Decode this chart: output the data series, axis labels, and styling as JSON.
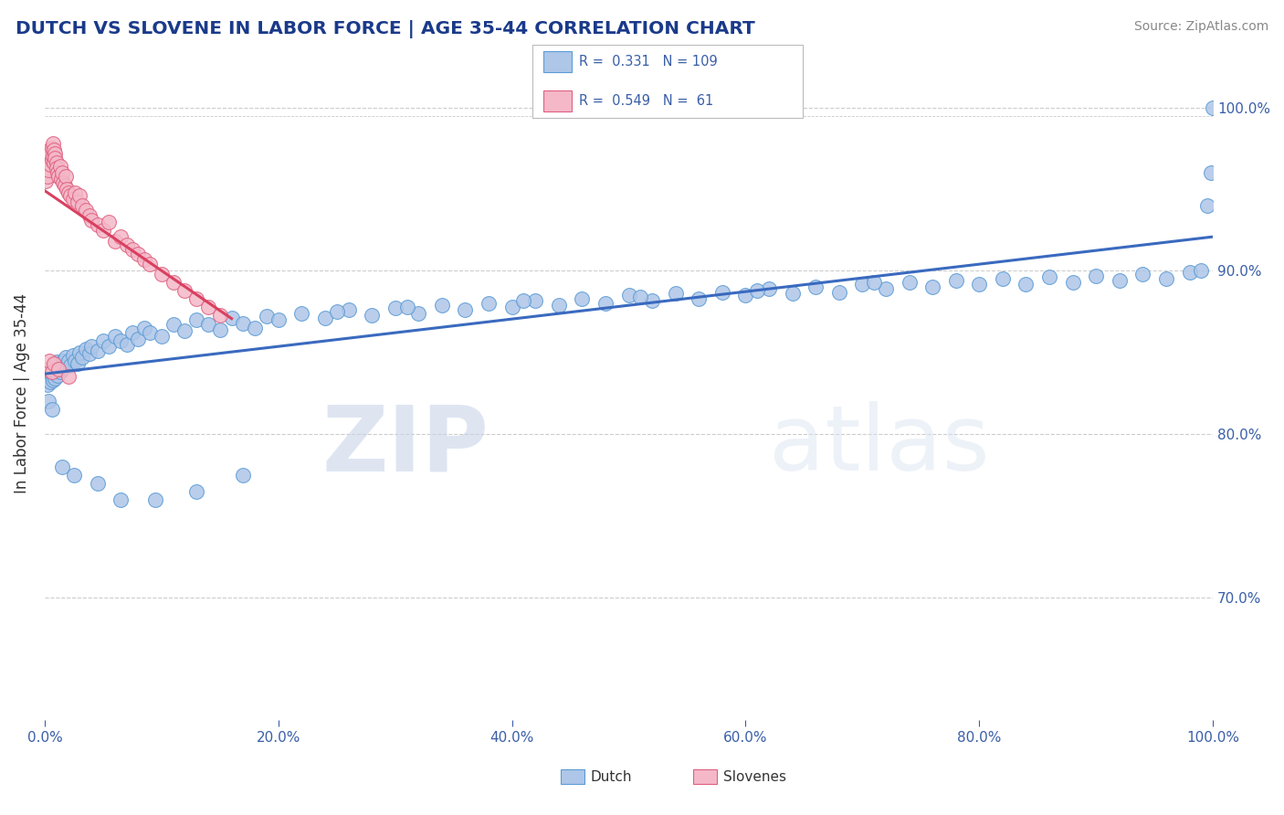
{
  "title": "DUTCH VS SLOVENE IN LABOR FORCE | AGE 35-44 CORRELATION CHART",
  "source_text": "Source: ZipAtlas.com",
  "ylabel": "In Labor Force | Age 35-44",
  "xlim": [
    0.0,
    1.0
  ],
  "ylim": [
    0.625,
    1.025
  ],
  "yticks": [
    0.7,
    0.8,
    0.9,
    1.0
  ],
  "xticks": [
    0.0,
    0.2,
    0.4,
    0.6,
    0.8,
    1.0
  ],
  "dutch_color": "#aec6e8",
  "slovene_color": "#f4b8c8",
  "dutch_edge_color": "#5b9bd5",
  "slovene_edge_color": "#e06080",
  "trend_dutch_color": "#3a6abf",
  "trend_slovene_color": "#d94060",
  "R_dutch": 0.331,
  "N_dutch": 109,
  "R_slovene": 0.549,
  "N_slovene": 61,
  "watermark_zip": "ZIP",
  "watermark_atlas": "atlas",
  "dutch_x": [
    0.002,
    0.003,
    0.004,
    0.005,
    0.005,
    0.006,
    0.007,
    0.007,
    0.008,
    0.009,
    0.01,
    0.01,
    0.011,
    0.012,
    0.013,
    0.014,
    0.015,
    0.016,
    0.017,
    0.018,
    0.02,
    0.022,
    0.024,
    0.026,
    0.028,
    0.03,
    0.032,
    0.035,
    0.038,
    0.04,
    0.045,
    0.05,
    0.055,
    0.06,
    0.065,
    0.07,
    0.075,
    0.08,
    0.085,
    0.09,
    0.1,
    0.11,
    0.12,
    0.13,
    0.14,
    0.15,
    0.16,
    0.17,
    0.18,
    0.19,
    0.2,
    0.22,
    0.24,
    0.26,
    0.28,
    0.3,
    0.32,
    0.34,
    0.36,
    0.38,
    0.4,
    0.42,
    0.44,
    0.46,
    0.48,
    0.5,
    0.52,
    0.54,
    0.56,
    0.58,
    0.6,
    0.62,
    0.64,
    0.66,
    0.68,
    0.7,
    0.72,
    0.74,
    0.76,
    0.78,
    0.8,
    0.82,
    0.84,
    0.86,
    0.88,
    0.9,
    0.92,
    0.94,
    0.96,
    0.98,
    0.99,
    0.995,
    0.998,
    1.0,
    0.25,
    0.31,
    0.41,
    0.51,
    0.61,
    0.71,
    0.003,
    0.006,
    0.015,
    0.025,
    0.045,
    0.065,
    0.095,
    0.13,
    0.17
  ],
  "dutch_y": [
    0.83,
    0.838,
    0.835,
    0.832,
    0.84,
    0.836,
    0.833,
    0.841,
    0.837,
    0.834,
    0.839,
    0.844,
    0.836,
    0.841,
    0.838,
    0.843,
    0.84,
    0.845,
    0.842,
    0.847,
    0.845,
    0.842,
    0.848,
    0.845,
    0.843,
    0.85,
    0.847,
    0.852,
    0.849,
    0.854,
    0.851,
    0.857,
    0.854,
    0.86,
    0.857,
    0.855,
    0.862,
    0.858,
    0.865,
    0.862,
    0.86,
    0.867,
    0.863,
    0.87,
    0.867,
    0.864,
    0.871,
    0.868,
    0.865,
    0.872,
    0.87,
    0.874,
    0.871,
    0.876,
    0.873,
    0.877,
    0.874,
    0.879,
    0.876,
    0.88,
    0.878,
    0.882,
    0.879,
    0.883,
    0.88,
    0.885,
    0.882,
    0.886,
    0.883,
    0.887,
    0.885,
    0.889,
    0.886,
    0.89,
    0.887,
    0.892,
    0.889,
    0.893,
    0.89,
    0.894,
    0.892,
    0.895,
    0.892,
    0.896,
    0.893,
    0.897,
    0.894,
    0.898,
    0.895,
    0.899,
    0.9,
    0.94,
    0.96,
    1.0,
    0.875,
    0.878,
    0.882,
    0.884,
    0.888,
    0.893,
    0.82,
    0.815,
    0.78,
    0.775,
    0.77,
    0.76,
    0.76,
    0.765,
    0.775
  ],
  "slovene_x": [
    0.001,
    0.001,
    0.002,
    0.002,
    0.003,
    0.003,
    0.004,
    0.004,
    0.005,
    0.005,
    0.006,
    0.006,
    0.007,
    0.007,
    0.008,
    0.008,
    0.009,
    0.009,
    0.01,
    0.01,
    0.011,
    0.012,
    0.013,
    0.014,
    0.015,
    0.016,
    0.017,
    0.018,
    0.019,
    0.02,
    0.022,
    0.024,
    0.026,
    0.028,
    0.03,
    0.032,
    0.035,
    0.038,
    0.04,
    0.045,
    0.05,
    0.055,
    0.06,
    0.065,
    0.07,
    0.075,
    0.08,
    0.085,
    0.09,
    0.1,
    0.11,
    0.12,
    0.13,
    0.14,
    0.15,
    0.002,
    0.004,
    0.006,
    0.008,
    0.012,
    0.02
  ],
  "slovene_y": [
    0.96,
    0.955,
    0.965,
    0.958,
    0.97,
    0.962,
    0.968,
    0.974,
    0.965,
    0.972,
    0.968,
    0.975,
    0.97,
    0.978,
    0.966,
    0.974,
    0.972,
    0.969,
    0.966,
    0.963,
    0.96,
    0.958,
    0.964,
    0.956,
    0.96,
    0.954,
    0.952,
    0.958,
    0.95,
    0.948,
    0.946,
    0.944,
    0.948,
    0.942,
    0.946,
    0.94,
    0.937,
    0.934,
    0.931,
    0.928,
    0.925,
    0.93,
    0.918,
    0.921,
    0.916,
    0.913,
    0.91,
    0.907,
    0.904,
    0.898,
    0.893,
    0.888,
    0.883,
    0.878,
    0.873,
    0.84,
    0.845,
    0.838,
    0.843,
    0.84,
    0.835
  ]
}
